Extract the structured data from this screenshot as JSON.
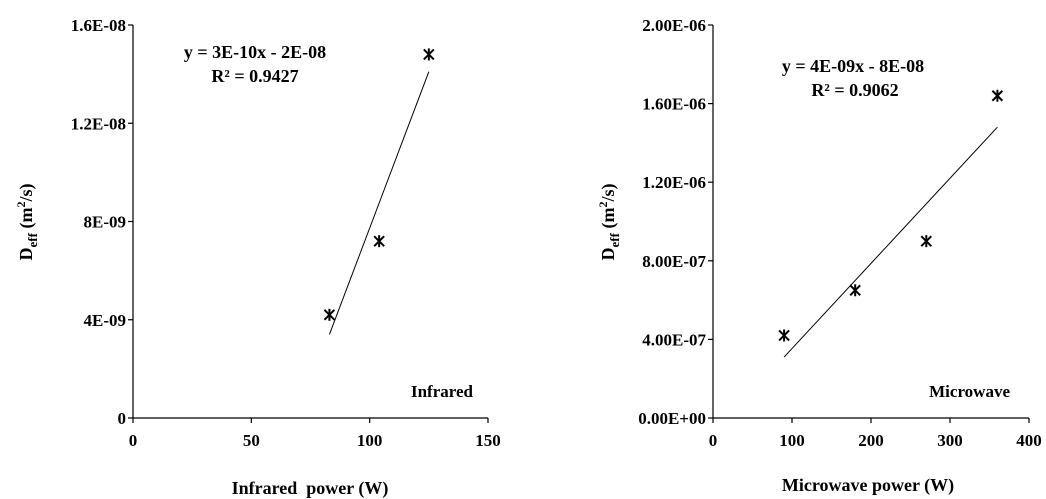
{
  "chart_data": [
    {
      "type": "scatter",
      "tag": "Infrared",
      "xlabel": "Infrared  power (W)",
      "ylabel": "Deff (m2/s)",
      "ylabel_main": "D",
      "ylabel_sub": "eff",
      "ylabel_unit": " (m",
      "ylabel_sup": "2",
      "ylabel_close": "/s)",
      "xlim": [
        0,
        150
      ],
      "ylim": [
        0,
        1.6e-08
      ],
      "xticks": [
        0,
        50,
        100,
        150
      ],
      "xtick_labels": [
        "0",
        "50",
        "100",
        "150"
      ],
      "yticks": [
        0,
        4e-09,
        8e-09,
        1.2e-08,
        1.6e-08
      ],
      "ytick_labels": [
        "0",
        "4E-09",
        "8E-09",
        "1.2E-08",
        "1.6E-08"
      ],
      "marker": "asterisk",
      "series": [
        {
          "x": [
            83,
            104,
            125
          ],
          "y": [
            4.2e-09,
            7.2e-09,
            1.48e-08
          ]
        }
      ],
      "trendline": {
        "x": [
          83,
          125
        ],
        "y": [
          3.4e-09,
          1.41e-08
        ],
        "equation": "y = 3E-10x - 2E-08",
        "r2": "R² = 0.9427"
      },
      "grid": false
    },
    {
      "type": "scatter",
      "tag": "Microwave",
      "xlabel": "Microwave power (W)",
      "ylabel": "Deff (m2/s)",
      "ylabel_main": "D",
      "ylabel_sub": "eff",
      "ylabel_unit": " (m",
      "ylabel_sup": "2",
      "ylabel_close": "/s)",
      "xlim": [
        0,
        400
      ],
      "ylim": [
        0,
        2e-06
      ],
      "xticks": [
        0,
        100,
        200,
        300,
        400
      ],
      "xtick_labels": [
        "0",
        "100",
        "200",
        "300",
        "400"
      ],
      "yticks": [
        0,
        4e-07,
        8e-07,
        1.2e-06,
        1.6e-06,
        2e-06
      ],
      "ytick_labels": [
        "0.00E+00",
        "4.00E-07",
        "8.00E-07",
        "1.20E-06",
        "1.60E-06",
        "2.00E-06"
      ],
      "marker": "asterisk",
      "series": [
        {
          "x": [
            90,
            180,
            270,
            360
          ],
          "y": [
            4.2e-07,
            6.5e-07,
            9e-07,
            1.64e-06
          ]
        }
      ],
      "trendline": {
        "x": [
          90,
          360
        ],
        "y": [
          3.1e-07,
          1.48e-06
        ],
        "equation": "y = 4E-09x - 8E-08",
        "r2": "R² = 0.9062"
      },
      "grid": false
    }
  ]
}
